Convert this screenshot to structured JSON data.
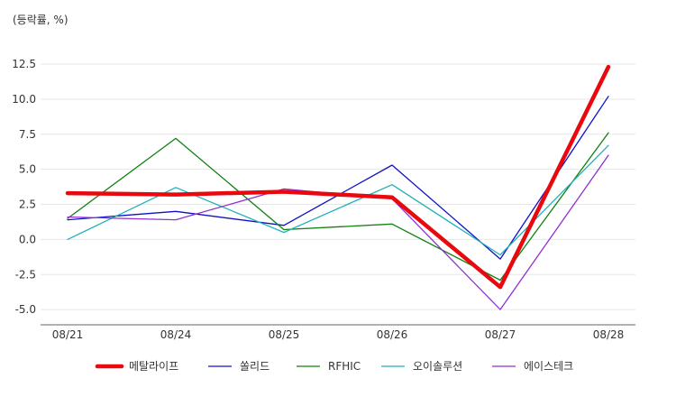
{
  "chart_data": {
    "type": "line",
    "ylabel": "(등락률, %)",
    "categories": [
      "08/21",
      "08/24",
      "08/25",
      "08/26",
      "08/27",
      "08/28"
    ],
    "ylim": [
      -6,
      13.5
    ],
    "yticks": [
      "12.5",
      "10.0",
      "7.5",
      "5.0",
      "2.5",
      "0.0",
      "-2.5",
      "-5.0"
    ],
    "ytick_values": [
      12.5,
      10.0,
      7.5,
      5.0,
      2.5,
      0.0,
      -2.5,
      -5.0
    ],
    "grid": true,
    "legend_position": "bottom",
    "series": [
      {
        "name": "메탈라이프",
        "color": "#e8080e",
        "bold": true,
        "values": [
          3.3,
          3.2,
          3.4,
          3.0,
          -3.4,
          12.3
        ]
      },
      {
        "name": "쏠리드",
        "color": "#1010c8",
        "bold": false,
        "values": [
          1.4,
          2.0,
          1.0,
          5.3,
          -1.4,
          10.2
        ]
      },
      {
        "name": "RFHIC",
        "color": "#128012",
        "bold": false,
        "values": [
          1.5,
          7.2,
          0.7,
          1.1,
          -2.9,
          7.6
        ]
      },
      {
        "name": "오이솔루션",
        "color": "#20b0b8",
        "bold": false,
        "values": [
          0.0,
          3.7,
          0.5,
          3.9,
          -1.1,
          6.7
        ]
      },
      {
        "name": "에이스테크",
        "color": "#9030d0",
        "bold": false,
        "values": [
          1.6,
          1.4,
          3.6,
          2.9,
          -5.0,
          6.0
        ]
      }
    ]
  }
}
